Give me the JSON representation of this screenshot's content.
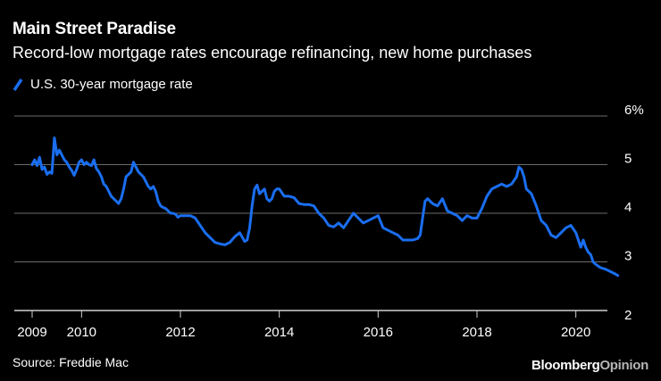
{
  "title": "Main Street Paradise",
  "subtitle": "Record-low mortgage rates encourage refinancing, new home purchases",
  "source": "Source: Freddie Mac",
  "brand": {
    "part1": "Bloomberg",
    "part2": "Opinion"
  },
  "colors": {
    "line": "#1a6ef0",
    "grid": "#6b6b6b",
    "background": "#000000",
    "text": "#ffffff"
  },
  "chart_data": {
    "type": "line",
    "title": "Main Street Paradise",
    "subtitle": "Record-low mortgage rates encourage refinancing, new home purchases",
    "xlabel": "",
    "ylabel": "",
    "xlim": [
      2009.0,
      2021.0
    ],
    "ylim": [
      2,
      6
    ],
    "yticks": [
      2,
      3,
      4,
      5,
      6
    ],
    "ytick_labels": [
      "2",
      "3",
      "4",
      "5",
      "6%"
    ],
    "xticks": [
      2009,
      2010,
      2012,
      2014,
      2016,
      2018,
      2020
    ],
    "xtick_labels": [
      "2009",
      "2010",
      "2012",
      "2014",
      "2016",
      "2018",
      "2020"
    ],
    "grid": true,
    "legend_position": "top-left",
    "series": [
      {
        "name": "U.S. 30-year mortgage rate",
        "x": [
          2009.0,
          2009.05,
          2009.1,
          2009.15,
          2009.2,
          2009.25,
          2009.3,
          2009.35,
          2009.4,
          2009.45,
          2009.5,
          2009.55,
          2009.6,
          2009.65,
          2009.7,
          2009.75,
          2009.8,
          2009.85,
          2009.9,
          2009.95,
          2010.0,
          2010.05,
          2010.1,
          2010.15,
          2010.2,
          2010.25,
          2010.3,
          2010.35,
          2010.4,
          2010.45,
          2010.5,
          2010.55,
          2010.6,
          2010.65,
          2010.7,
          2010.75,
          2010.8,
          2010.85,
          2010.9,
          2010.95,
          2011.0,
          2011.05,
          2011.1,
          2011.15,
          2011.2,
          2011.25,
          2011.3,
          2011.35,
          2011.4,
          2011.45,
          2011.5,
          2011.55,
          2011.6,
          2011.65,
          2011.7,
          2011.75,
          2011.8,
          2011.85,
          2011.9,
          2011.95,
          2012.0,
          2012.1,
          2012.2,
          2012.3,
          2012.4,
          2012.5,
          2012.6,
          2012.7,
          2012.8,
          2012.9,
          2013.0,
          2013.1,
          2013.2,
          2013.3,
          2013.35,
          2013.4,
          2013.45,
          2013.5,
          2013.55,
          2013.6,
          2013.65,
          2013.7,
          2013.75,
          2013.8,
          2013.85,
          2013.9,
          2013.95,
          2014.0,
          2014.1,
          2014.2,
          2014.3,
          2014.4,
          2014.5,
          2014.6,
          2014.7,
          2014.8,
          2014.9,
          2015.0,
          2015.1,
          2015.2,
          2015.3,
          2015.4,
          2015.5,
          2015.6,
          2015.7,
          2015.8,
          2015.9,
          2016.0,
          2016.1,
          2016.2,
          2016.3,
          2016.4,
          2016.5,
          2016.6,
          2016.7,
          2016.8,
          2016.85,
          2016.9,
          2016.95,
          2017.0,
          2017.1,
          2017.2,
          2017.3,
          2017.4,
          2017.5,
          2017.6,
          2017.7,
          2017.8,
          2017.9,
          2018.0,
          2018.1,
          2018.2,
          2018.3,
          2018.4,
          2018.5,
          2018.6,
          2018.7,
          2018.8,
          2018.85,
          2018.9,
          2018.95,
          2019.0,
          2019.1,
          2019.2,
          2019.3,
          2019.4,
          2019.5,
          2019.6,
          2019.7,
          2019.8,
          2019.9,
          2020.0,
          2020.1,
          2020.15,
          2020.2,
          2020.25,
          2020.3,
          2020.35,
          2020.4,
          2020.5,
          2020.6,
          2020.7,
          2020.8,
          2020.85
        ],
        "y": [
          5.0,
          5.1,
          4.98,
          5.15,
          4.9,
          4.95,
          4.8,
          4.85,
          4.82,
          5.55,
          5.2,
          5.3,
          5.2,
          5.1,
          5.05,
          4.95,
          4.88,
          4.78,
          4.9,
          5.05,
          5.1,
          5.0,
          5.05,
          5.0,
          4.98,
          5.1,
          4.92,
          4.85,
          4.75,
          4.6,
          4.55,
          4.45,
          4.35,
          4.3,
          4.25,
          4.2,
          4.3,
          4.5,
          4.75,
          4.8,
          4.85,
          5.05,
          4.95,
          4.85,
          4.8,
          4.75,
          4.65,
          4.55,
          4.5,
          4.55,
          4.45,
          4.25,
          4.15,
          4.12,
          4.1,
          4.05,
          4.0,
          4.0,
          3.98,
          3.92,
          3.95,
          3.95,
          3.95,
          3.9,
          3.75,
          3.6,
          3.5,
          3.4,
          3.37,
          3.35,
          3.4,
          3.52,
          3.6,
          3.42,
          3.45,
          3.7,
          4.15,
          4.5,
          4.58,
          4.4,
          4.45,
          4.5,
          4.3,
          4.25,
          4.3,
          4.45,
          4.5,
          4.5,
          4.35,
          4.35,
          4.32,
          4.2,
          4.18,
          4.18,
          4.15,
          4.0,
          3.9,
          3.75,
          3.72,
          3.8,
          3.7,
          3.85,
          4.0,
          3.9,
          3.8,
          3.85,
          3.9,
          3.95,
          3.7,
          3.65,
          3.6,
          3.55,
          3.45,
          3.45,
          3.45,
          3.48,
          3.55,
          3.9,
          4.25,
          4.3,
          4.2,
          4.15,
          4.3,
          4.05,
          4.0,
          3.95,
          3.85,
          3.95,
          3.9,
          3.9,
          4.1,
          4.35,
          4.5,
          4.55,
          4.6,
          4.55,
          4.6,
          4.75,
          4.95,
          4.9,
          4.75,
          4.5,
          4.4,
          4.15,
          3.85,
          3.75,
          3.55,
          3.5,
          3.6,
          3.7,
          3.75,
          3.6,
          3.3,
          3.45,
          3.3,
          3.2,
          3.15,
          3.0,
          2.95,
          2.88,
          2.85,
          2.8,
          2.75,
          2.72
        ]
      }
    ]
  },
  "legend": {
    "label": "U.S. 30-year mortgage rate"
  }
}
